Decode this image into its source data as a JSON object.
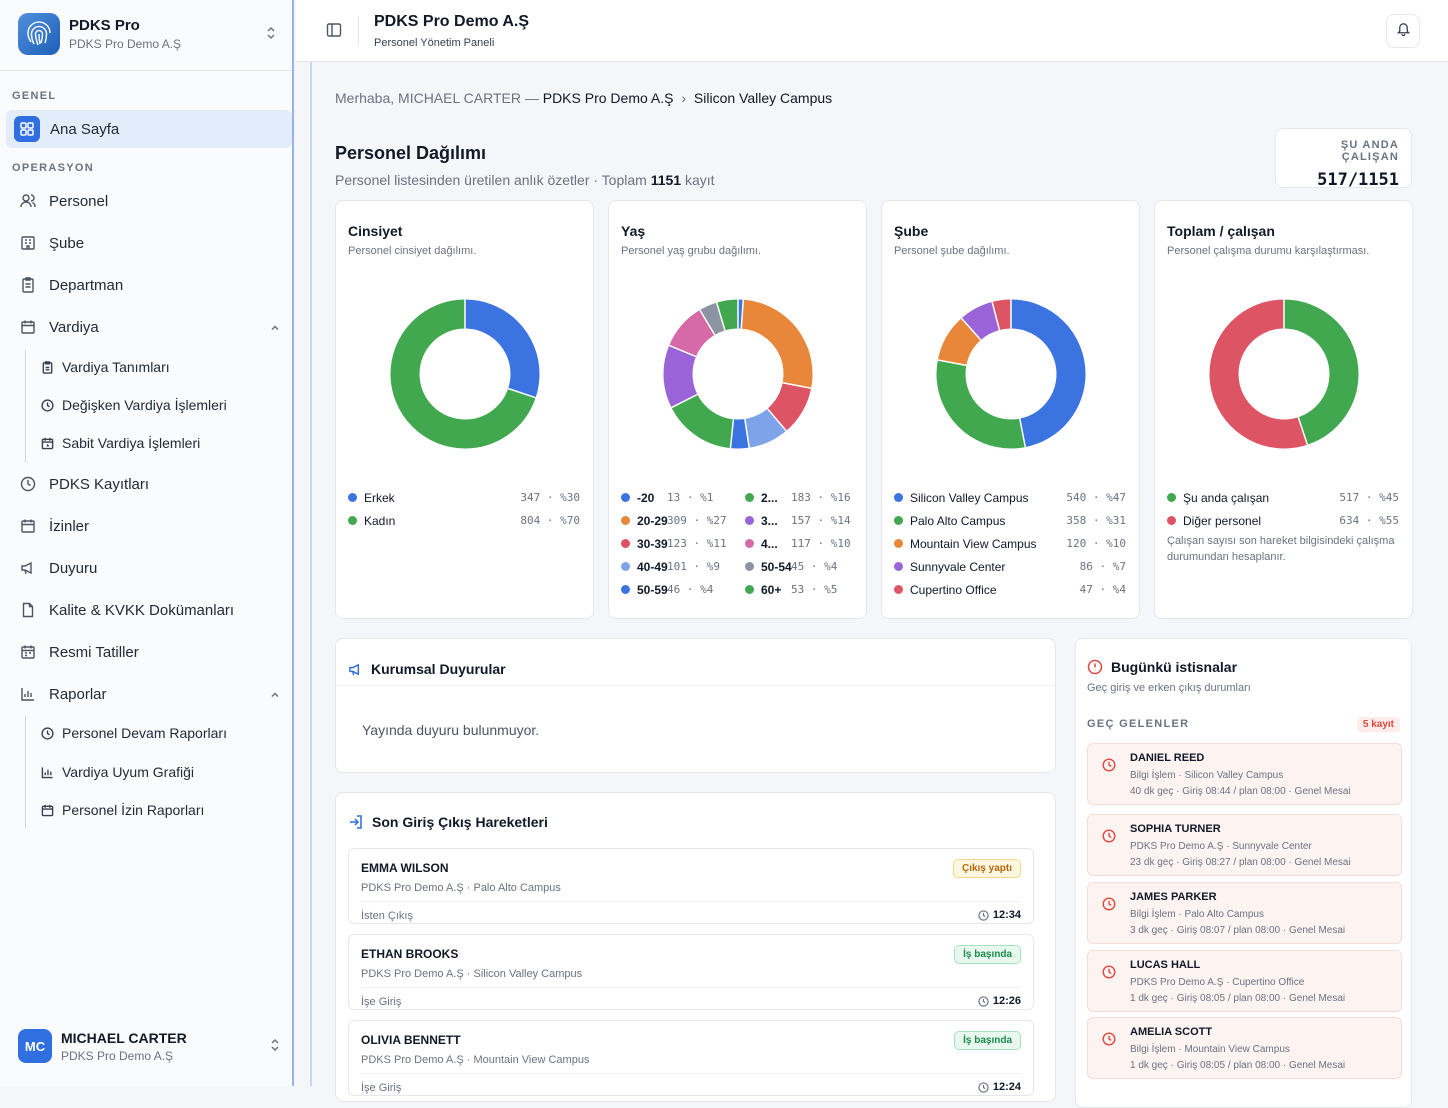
{
  "sidebar": {
    "brand_title": "PDKS Pro",
    "brand_sub": "PDKS Pro Demo A.Ş",
    "sections": {
      "general": "GENEL",
      "operation": "OPERASYON"
    },
    "active_item": "Ana Sayfa",
    "items": {
      "personel": "Personel",
      "sube": "Şube",
      "departman": "Departman",
      "vardiya": "Vardiya",
      "vardiya_tanimlari": "Vardiya Tanımları",
      "degisken_vardiya": "Değişken Vardiya İşlemleri",
      "sabit_vardiya": "Sabit Vardiya İşlemleri",
      "pdks_kayitlari": "PDKS Kayıtları",
      "izinler": "İzinler",
      "duyuru": "Duyuru",
      "kalite": "Kalite & KVKK Dokümanları",
      "resmi_tatiller": "Resmi Tatiller",
      "raporlar": "Raporlar",
      "devam_raporlari": "Personel Devam Raporları",
      "uyum_grafigi": "Vardiya Uyum Grafiği",
      "izin_raporlari": "Personel İzin Raporları"
    },
    "user": {
      "initials": "MC",
      "name": "MICHAEL CARTER",
      "org": "PDKS Pro Demo A.Ş"
    }
  },
  "topbar": {
    "title": "PDKS Pro Demo A.Ş",
    "subtitle": "Personel Yönetim Paneli"
  },
  "breadcrumb": {
    "greeting": "Merhaba, MICHAEL CARTER — ",
    "org": "PDKS Pro Demo A.Ş",
    "sep": "›",
    "campus": "Silicon Valley Campus"
  },
  "summary": {
    "title": "Personel Dağılımı",
    "sub_prefix": "Personel listesinden üretilen anlık özetler · Toplam ",
    "total": "1151",
    "sub_suffix": " kayıt",
    "now_label": "ŞU ANDA ÇALIŞAN",
    "now_value": "517/1151"
  },
  "colors": {
    "blue": "#3b74e0",
    "green": "#41a84f",
    "orange": "#e8873a",
    "red": "#dd5464",
    "purple": "#9a64d8",
    "pink": "#d66aa8",
    "lightblue": "#7ea3e8",
    "gray": "#8c94a3",
    "teal": "#3aa6a0"
  },
  "chart_data": [
    {
      "type": "pie",
      "title": "Cinsiyet",
      "subtitle": "Personel cinsiyet dağılımı.",
      "series": [
        {
          "name": "Erkek",
          "value": 347,
          "pct": "%30",
          "color": "#3b74e0"
        },
        {
          "name": "Kadın",
          "value": 804,
          "pct": "%70",
          "color": "#41a84f"
        }
      ]
    },
    {
      "type": "pie",
      "title": "Yaş",
      "subtitle": "Personel yaş grubu dağılımı.",
      "series": [
        {
          "name": "-20",
          "value": 13,
          "pct": "%1",
          "color": "#3b74e0"
        },
        {
          "name": "20-29",
          "value": 309,
          "pct": "%27",
          "color": "#e8873a"
        },
        {
          "name": "30-39",
          "value": 123,
          "pct": "%11",
          "color": "#dd5464"
        },
        {
          "name": "40-49",
          "value": 101,
          "pct": "%9",
          "color": "#7ea3e8"
        },
        {
          "name": "50-59",
          "value": 46,
          "pct": "%4",
          "color": "#3b74e0"
        },
        {
          "name": "2...",
          "value": 183,
          "pct": "%16",
          "color": "#41a84f"
        },
        {
          "name": "3...",
          "value": 157,
          "pct": "%14",
          "color": "#9a64d8"
        },
        {
          "name": "4...",
          "value": 117,
          "pct": "%10",
          "color": "#d66aa8"
        },
        {
          "name": "50-54",
          "value": 45,
          "pct": "%4",
          "color": "#8c94a3"
        },
        {
          "name": "60+",
          "value": 53,
          "pct": "%5",
          "color": "#41a84f"
        }
      ]
    },
    {
      "type": "pie",
      "title": "Şube",
      "subtitle": "Personel şube dağılımı.",
      "series": [
        {
          "name": "Silicon Valley Campus",
          "value": 540,
          "pct": "%47",
          "color": "#3b74e0"
        },
        {
          "name": "Palo Alto Campus",
          "value": 358,
          "pct": "%31",
          "color": "#41a84f"
        },
        {
          "name": "Mountain View Campus",
          "value": 120,
          "pct": "%10",
          "color": "#e8873a"
        },
        {
          "name": "Sunnyvale Center",
          "value": 86,
          "pct": "%7",
          "color": "#9a64d8"
        },
        {
          "name": "Cupertino Office",
          "value": 47,
          "pct": "%4",
          "color": "#dd5464"
        }
      ]
    },
    {
      "type": "pie",
      "title": "Toplam / çalışan",
      "subtitle": "Personel çalışma durumu karşılaştırması.",
      "note": "Çalışan sayısı son hareket bilgisindeki çalışma durumundan hesaplanır.",
      "series": [
        {
          "name": "Şu anda çalışan",
          "value": 517,
          "pct": "%45",
          "color": "#41a84f"
        },
        {
          "name": "Diğer personel",
          "value": 634,
          "pct": "%55",
          "color": "#dd5464"
        }
      ]
    }
  ],
  "announcements": {
    "title": "Kurumsal Duyurular",
    "empty": "Yayında duyuru bulunmuyor."
  },
  "movements": {
    "title": "Son Giriş Çıkış Hareketleri",
    "rows": [
      {
        "name": "EMMA WILSON",
        "org": "PDKS Pro Demo A.Ş · Palo Alto Campus",
        "type": "İsten Çıkış",
        "time": "12:34",
        "status": "Çıkış yaptı",
        "kind": "out"
      },
      {
        "name": "ETHAN BROOKS",
        "org": "PDKS Pro Demo A.Ş · Silicon Valley Campus",
        "type": "İşe Giriş",
        "time": "12:26",
        "status": "İş başında",
        "kind": "in"
      },
      {
        "name": "OLIVIA BENNETT",
        "org": "PDKS Pro Demo A.Ş · Mountain View Campus",
        "type": "İşe Giriş",
        "time": "12:24",
        "status": "İş başında",
        "kind": "in"
      }
    ]
  },
  "exceptions": {
    "title": "Bugünkü istisnalar",
    "subtitle": "Geç giriş ve erken çıkış durumları",
    "late_label": "GEÇ GELENLER",
    "late_count": "5 kayıt",
    "rows": [
      {
        "name": "DANIEL REED",
        "org": "Bilgi İşlem · Silicon Valley Campus",
        "detail": "40 dk geç · Giriş 08:44 / plan 08:00 · Genel Mesai"
      },
      {
        "name": "SOPHIA TURNER",
        "org": "PDKS Pro Demo A.Ş · Sunnyvale Center",
        "detail": "23 dk geç · Giriş 08:27 / plan 08:00 · Genel Mesai"
      },
      {
        "name": "JAMES PARKER",
        "org": "Bilgi İşlem · Palo Alto Campus",
        "detail": "3 dk geç · Giriş 08:07 / plan 08:00 · Genel Mesai"
      },
      {
        "name": "LUCAS HALL",
        "org": "PDKS Pro Demo A.Ş · Cupertino Office",
        "detail": "1 dk geç · Giriş 08:05 / plan 08:00 · Genel Mesai"
      },
      {
        "name": "AMELIA SCOTT",
        "org": "Bilgi İşlem · Mountain View Campus",
        "detail": "1 dk geç · Giriş 08:05 / plan 08:00 · Genel Mesai"
      }
    ]
  }
}
